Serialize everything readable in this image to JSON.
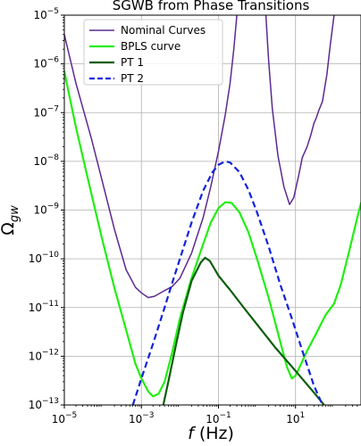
{
  "chart_data": {
    "type": "line",
    "title": "SGWB from Phase Transitions",
    "xlabel": "f (Hz)",
    "ylabel": "Ωgw",
    "xscale": "log",
    "yscale": "log",
    "xlim": [
      1e-05,
      500
    ],
    "ylim": [
      1e-13,
      1e-05
    ],
    "grid": true,
    "legend_position": "top-left",
    "x_ticks": [
      {
        "value": 1e-05,
        "base": "10",
        "exp": "−5"
      },
      {
        "value": 0.001,
        "base": "10",
        "exp": "−3"
      },
      {
        "value": 0.1,
        "base": "10",
        "exp": "−1"
      },
      {
        "value": 10,
        "base": "10",
        "exp": "1"
      }
    ],
    "y_ticks": [
      {
        "value": 1e-13,
        "base": "10",
        "exp": "−13"
      },
      {
        "value": 1e-12,
        "base": "10",
        "exp": "−12"
      },
      {
        "value": 1e-11,
        "base": "10",
        "exp": "−11"
      },
      {
        "value": 1e-10,
        "base": "10",
        "exp": "−10"
      },
      {
        "value": 1e-09,
        "base": "10",
        "exp": "−9"
      },
      {
        "value": 1e-08,
        "base": "10",
        "exp": "−8"
      },
      {
        "value": 1e-07,
        "base": "10",
        "exp": "−7"
      },
      {
        "value": 1e-06,
        "base": "10",
        "exp": "−6"
      },
      {
        "value": 1e-05,
        "base": "10",
        "exp": "−5"
      }
    ],
    "series": [
      {
        "name": "Nominal Curves",
        "color": "#5b2a91",
        "style": "solid",
        "width": 1.5,
        "points": [
          {
            "x": 1e-05,
            "y": 4e-06
          },
          {
            "x": 2e-05,
            "y": 4e-07
          },
          {
            "x": 5e-05,
            "y": 3e-08
          },
          {
            "x": 0.0001,
            "y": 3.5e-09
          },
          {
            "x": 0.0002,
            "y": 4e-10
          },
          {
            "x": 0.0004,
            "y": 6e-11
          },
          {
            "x": 0.0007,
            "y": 2.6e-11
          },
          {
            "x": 0.001,
            "y": 2e-11
          },
          {
            "x": 0.0015,
            "y": 1.6e-11
          },
          {
            "x": 0.0022,
            "y": 1.7e-11
          },
          {
            "x": 0.0035,
            "y": 2.1e-11
          },
          {
            "x": 0.0063,
            "y": 2.7e-11
          },
          {
            "x": 0.01,
            "y": 4e-11
          },
          {
            "x": 0.02,
            "y": 1.3e-10
          },
          {
            "x": 0.04,
            "y": 7e-10
          },
          {
            "x": 0.063,
            "y": 3e-09
          },
          {
            "x": 0.1,
            "y": 1.6e-08
          },
          {
            "x": 0.15,
            "y": 9e-08
          },
          {
            "x": 0.2,
            "y": 4e-07
          },
          {
            "x": 0.25,
            "y": 2e-06
          },
          {
            "x": 0.3,
            "y": 1e-05
          },
          {
            "x": null,
            "y": null
          },
          {
            "x": 1.7,
            "y": 1e-05
          },
          {
            "x": 2,
            "y": 1.2e-06
          },
          {
            "x": 2.5,
            "y": 1.2e-07
          },
          {
            "x": 3.5,
            "y": 1.3e-08
          },
          {
            "x": 5,
            "y": 3e-09
          },
          {
            "x": 7,
            "y": 1.3e-09
          },
          {
            "x": 9,
            "y": 1.8e-09
          },
          {
            "x": 12,
            "y": 5e-09
          },
          {
            "x": 15,
            "y": 1.2e-08
          },
          {
            "x": 20,
            "y": 2e-08
          },
          {
            "x": 25,
            "y": 3.5e-08
          },
          {
            "x": 30,
            "y": 6e-08
          },
          {
            "x": 35,
            "y": 8e-08
          },
          {
            "x": 40,
            "y": 1.1e-07
          },
          {
            "x": 50,
            "y": 1.7e-07
          },
          {
            "x": 65,
            "y": 6e-07
          },
          {
            "x": 80,
            "y": 2.5e-06
          },
          {
            "x": 100,
            "y": 1e-05
          }
        ]
      },
      {
        "name": "BPLS curve",
        "color": "#22ee11",
        "style": "solid",
        "width": 2.2,
        "points": [
          {
            "x": 1e-05,
            "y": 7e-07
          },
          {
            "x": 2e-05,
            "y": 5e-08
          },
          {
            "x": 5e-05,
            "y": 2.2e-09
          },
          {
            "x": 0.0001,
            "y": 2.2e-10
          },
          {
            "x": 0.0002,
            "y": 2.5e-11
          },
          {
            "x": 0.0004,
            "y": 3.5e-12
          },
          {
            "x": 0.0007,
            "y": 7e-13
          },
          {
            "x": 0.001,
            "y": 3.5e-13
          },
          {
            "x": 0.0015,
            "y": 1.9e-13
          },
          {
            "x": 0.002,
            "y": 1.5e-13
          },
          {
            "x": 0.0028,
            "y": 1.7e-13
          },
          {
            "x": 0.004,
            "y": 3e-13
          },
          {
            "x": 0.0063,
            "y": 1.2e-12
          },
          {
            "x": 0.01,
            "y": 6e-12
          },
          {
            "x": 0.02,
            "y": 4e-11
          },
          {
            "x": 0.04,
            "y": 2e-10
          },
          {
            "x": 0.063,
            "y": 5.5e-10
          },
          {
            "x": 0.1,
            "y": 1.1e-09
          },
          {
            "x": 0.15,
            "y": 1.45e-09
          },
          {
            "x": 0.22,
            "y": 1.4e-09
          },
          {
            "x": 0.35,
            "y": 9e-10
          },
          {
            "x": 0.6,
            "y": 3.5e-10
          },
          {
            "x": 1,
            "y": 1e-10
          },
          {
            "x": 2,
            "y": 1.6e-11
          },
          {
            "x": 4,
            "y": 2e-12
          },
          {
            "x": 6,
            "y": 6e-13
          },
          {
            "x": 8,
            "y": 3.5e-13
          },
          {
            "x": 10,
            "y": 4e-13
          },
          {
            "x": 14,
            "y": 7e-13
          },
          {
            "x": 20,
            "y": 1.3e-12
          },
          {
            "x": 35,
            "y": 3e-12
          },
          {
            "x": 60,
            "y": 7e-12
          },
          {
            "x": 100,
            "y": 1.2e-11
          },
          {
            "x": 150,
            "y": 3e-11
          },
          {
            "x": 250,
            "y": 1.5e-10
          },
          {
            "x": 400,
            "y": 7e-10
          },
          {
            "x": 500,
            "y": 1.4e-09
          }
        ]
      },
      {
        "name": "PT 1",
        "color": "#0b5e0b",
        "style": "solid",
        "width": 2.2,
        "points": [
          {
            "x": 0.0037,
            "y": 1e-13
          },
          {
            "x": 0.005,
            "y": 3e-13
          },
          {
            "x": 0.008,
            "y": 1.8e-12
          },
          {
            "x": 0.012,
            "y": 8e-12
          },
          {
            "x": 0.02,
            "y": 3.5e-11
          },
          {
            "x": 0.035,
            "y": 8.5e-11
          },
          {
            "x": 0.045,
            "y": 1.05e-10
          },
          {
            "x": 0.06,
            "y": 9e-11
          },
          {
            "x": 0.1,
            "y": 4.5e-11
          },
          {
            "x": 0.2,
            "y": 2.3e-11
          },
          {
            "x": 0.5,
            "y": 9e-12
          },
          {
            "x": 1,
            "y": 4.5e-12
          },
          {
            "x": 3,
            "y": 1.5e-12
          },
          {
            "x": 10,
            "y": 5e-13
          },
          {
            "x": 30,
            "y": 1.8e-13
          },
          {
            "x": 50,
            "y": 1.1e-13
          },
          {
            "x": 55,
            "y": 1e-13
          }
        ]
      },
      {
        "name": "PT 2",
        "color": "#1122dd",
        "style": "dashed",
        "width": 2.2,
        "points": [
          {
            "x": 0.0006,
            "y": 1e-13
          },
          {
            "x": 0.001,
            "y": 3.5e-13
          },
          {
            "x": 0.002,
            "y": 1.8e-12
          },
          {
            "x": 0.004,
            "y": 1e-11
          },
          {
            "x": 0.0063,
            "y": 3.2e-11
          },
          {
            "x": 0.01,
            "y": 1e-10
          },
          {
            "x": 0.02,
            "y": 5.5e-10
          },
          {
            "x": 0.04,
            "y": 2.5e-09
          },
          {
            "x": 0.07,
            "y": 6e-09
          },
          {
            "x": 0.1,
            "y": 8.5e-09
          },
          {
            "x": 0.15,
            "y": 1e-08
          },
          {
            "x": 0.2,
            "y": 9.5e-09
          },
          {
            "x": 0.35,
            "y": 6e-09
          },
          {
            "x": 0.6,
            "y": 2.6e-09
          },
          {
            "x": 1,
            "y": 9e-10
          },
          {
            "x": 2,
            "y": 1.8e-10
          },
          {
            "x": 4,
            "y": 3e-11
          },
          {
            "x": 8,
            "y": 6e-12
          },
          {
            "x": 15,
            "y": 1.3e-12
          },
          {
            "x": 30,
            "y": 2.5e-13
          },
          {
            "x": 50,
            "y": 1e-13
          }
        ]
      }
    ]
  }
}
